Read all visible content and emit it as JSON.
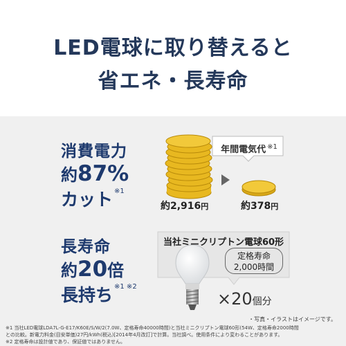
{
  "headline": {
    "line1": "LED電球に取り替えると",
    "line2": "省エネ・長寿命"
  },
  "power": {
    "label": "消費電力",
    "prefix": "約",
    "value": "87%",
    "suffix": "カット",
    "note": "※1"
  },
  "cost": {
    "callout": "年間電気代",
    "callout_note": "※1",
    "before_prefix": "約",
    "before_value": "2,916",
    "before_unit": "円",
    "after_prefix": "約",
    "after_value": "378",
    "after_unit": "円"
  },
  "life": {
    "label": "長寿命",
    "prefix": "約",
    "value": "20",
    "unit": "倍",
    "suffix": "長持ち",
    "note": "※1 ※2"
  },
  "bulb": {
    "title": "当社ミニクリプトン電球60形",
    "life_label": "定格寿命",
    "life_value": "2,000時間",
    "multiplier_prefix": "×",
    "multiplier": "20",
    "multiplier_unit": "個分"
  },
  "notes": {
    "photo": "・写真・イラストはイメージです。",
    "fn1": "※1 当社LED電球LDA7L-G-E17/K60E/S/W/2(7.0W、定格寿命40000時間)と当社ミニクリプトン電球60形(54W、定格寿命2000時間",
    "fn2": "との比較。新電力料金(目安単価)27円/kWh(税込)[2014年4月改訂]で計算。当社調べ。使用条件により変わることがあります。",
    "fn3": "※2 定格寿命は設計値であり、保証値ではありません。"
  },
  "colors": {
    "accent": "#1e3a6e",
    "coin": "#e8b820",
    "panel": "#f0f0f0"
  },
  "icons": {
    "coins": "coin-stack-icon",
    "coin": "coin-icon",
    "arrow": "arrow-right-icon",
    "bulb": "light-bulb-icon"
  }
}
